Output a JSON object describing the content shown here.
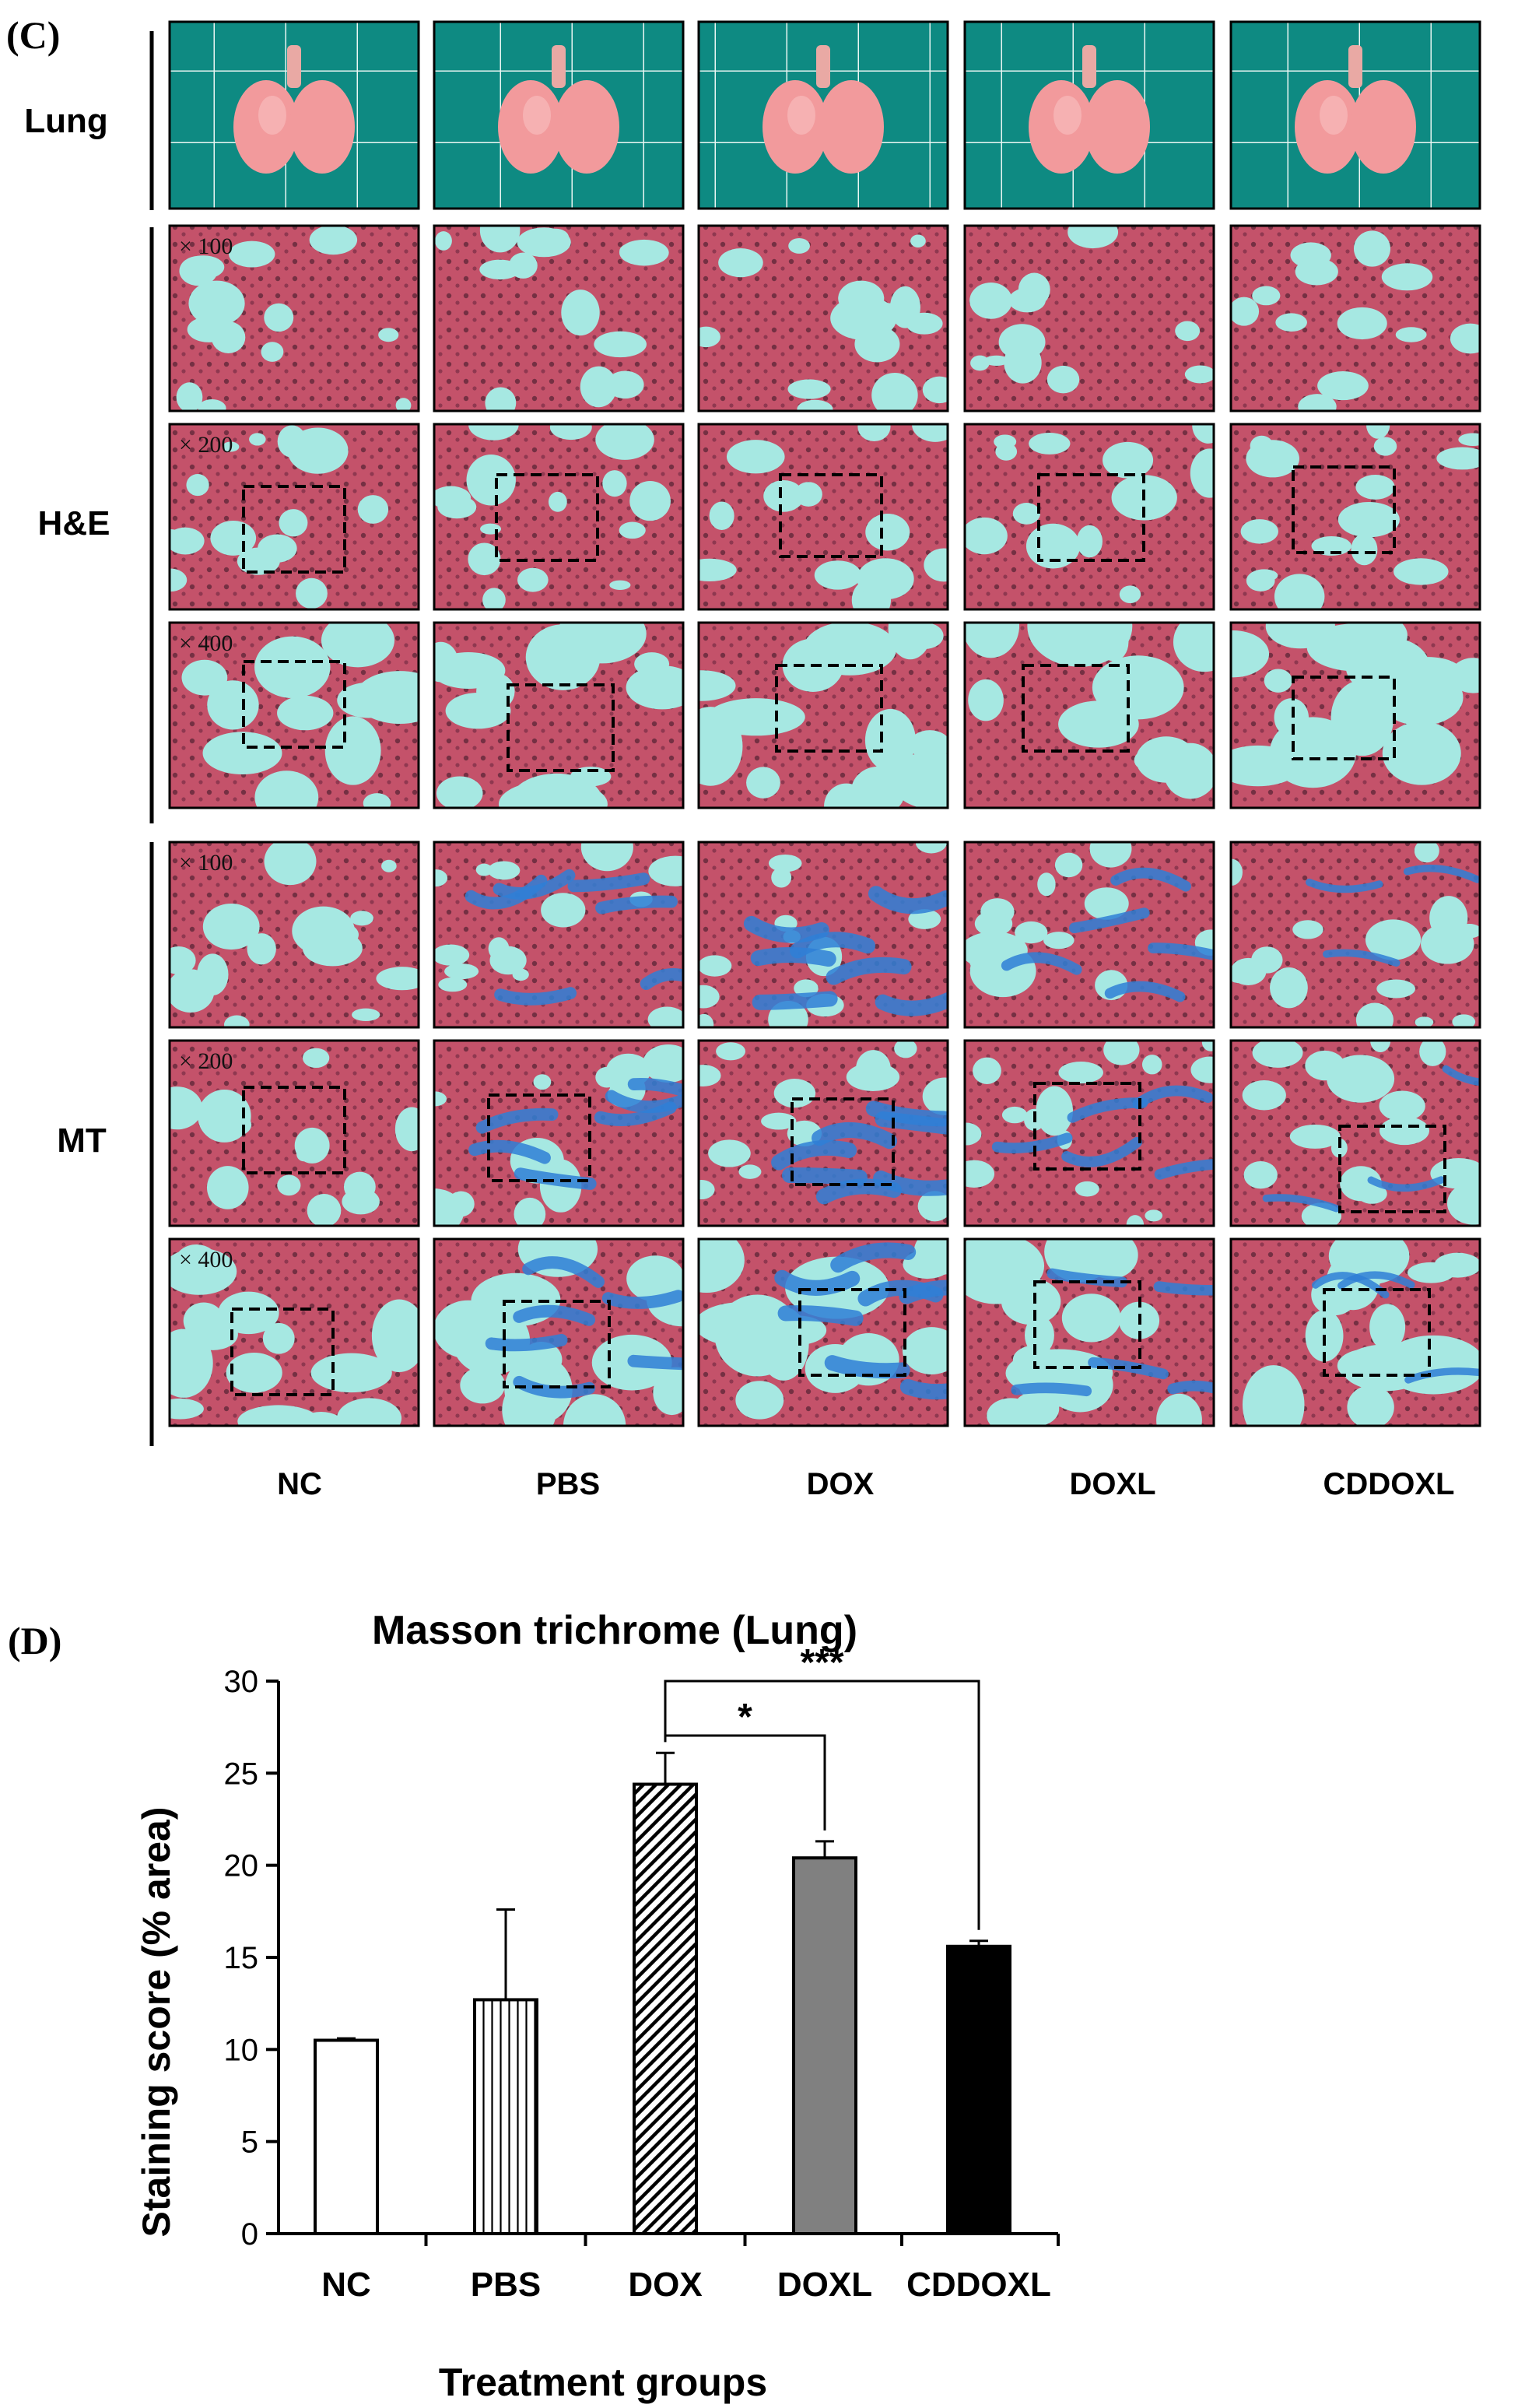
{
  "panel_c": {
    "letter": "(C)",
    "columns": [
      "NC",
      "PBS",
      "DOX",
      "DOXL",
      "CDDOXL"
    ],
    "row_groups": [
      "Lung",
      "H&E",
      "MT"
    ],
    "magnifications": [
      "× 100",
      "× 200",
      "× 400"
    ],
    "colors": {
      "tray": "#0e8a82",
      "tissue_bg": "#a6e8e2",
      "tissue_pink": "#c4526a",
      "lung": "#f29a9c",
      "collagen": "#2f7fd6"
    }
  },
  "panel_d": {
    "letter": "(D)",
    "colors": {
      "bar_edge": "#000000",
      "doxl_fill": "#808080",
      "cddoxl_fill": "#000000"
    },
    "chart_data": {
      "type": "bar",
      "title": "Masson trichrome (Lung)",
      "xlabel": "Treatment groups",
      "ylabel": "Staining score (% area)",
      "categories": [
        "NC",
        "PBS",
        "DOX",
        "DOXL",
        "CDDOXL"
      ],
      "values": [
        10.5,
        12.7,
        24.4,
        20.4,
        15.6
      ],
      "errors": [
        0.1,
        4.9,
        1.7,
        0.9,
        0.3
      ],
      "fills": [
        "white",
        "vertical-lines",
        "diagonal-hatch",
        "gray",
        "black"
      ],
      "ylim": [
        0,
        30
      ],
      "yticks": [
        0,
        5,
        10,
        15,
        20,
        25,
        30
      ],
      "grid": false,
      "significance": [
        {
          "from": "DOX",
          "to": "DOXL",
          "label": "*"
        },
        {
          "from": "DOX",
          "to": "CDDOXL",
          "label": "***"
        }
      ]
    }
  }
}
